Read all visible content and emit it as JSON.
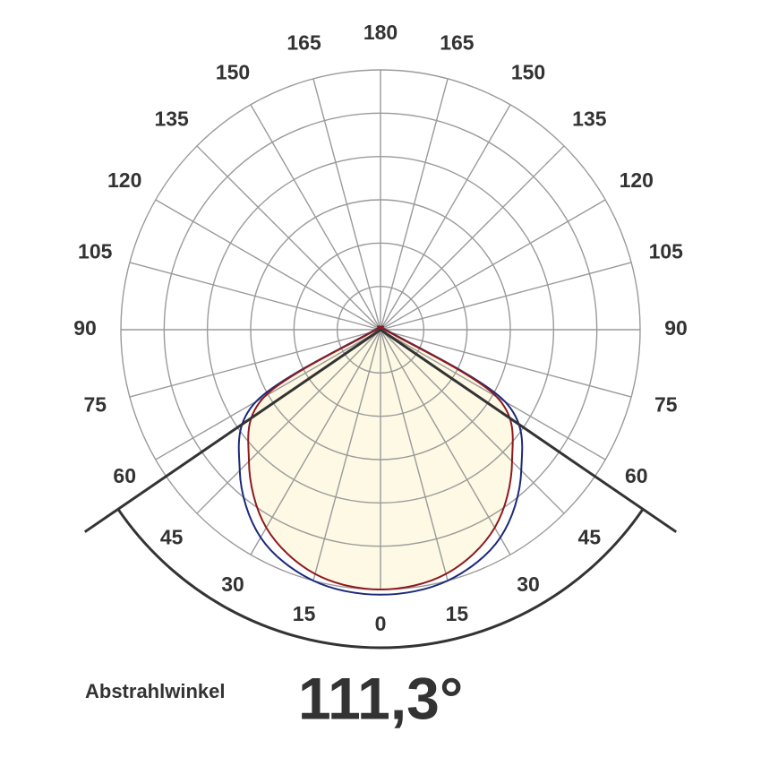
{
  "chart_data": {
    "type": "polar",
    "angles": [
      -90,
      -75,
      -60,
      -45,
      -30,
      -15,
      0,
      15,
      30,
      45,
      60,
      75,
      90
    ],
    "series": [
      {
        "color": "#1c2a7a",
        "values": [
          0,
          12,
          166,
          230,
          277,
          300,
          306,
          300,
          277,
          230,
          166,
          12,
          0
        ]
      },
      {
        "color": "#8e1a1f",
        "fill": "#fdf9e4",
        "values": [
          0,
          10,
          155,
          215,
          264,
          292,
          300,
          292,
          264,
          215,
          155,
          10,
          0
        ]
      }
    ],
    "rlim": [
      0,
      300
    ],
    "rticks": [
      50,
      100,
      150,
      200,
      250,
      300
    ],
    "thetaticks": [
      {
        "value": -165,
        "label": "165"
      },
      {
        "value": -150,
        "label": "150"
      },
      {
        "value": -135,
        "label": "135"
      },
      {
        "value": -120,
        "label": "120"
      },
      {
        "value": -105,
        "label": "105"
      },
      {
        "value": -90,
        "label": "90"
      },
      {
        "value": -75,
        "label": "75"
      },
      {
        "value": -60,
        "label": "60"
      },
      {
        "value": -45,
        "label": "45"
      },
      {
        "value": -30,
        "label": "30"
      },
      {
        "value": -15,
        "label": "15"
      },
      0,
      15,
      30,
      45,
      60,
      75,
      90,
      105,
      120,
      135,
      150,
      165,
      180
    ],
    "beam_angle": {
      "label": "Abstrahlwinkel",
      "value": 111.3,
      "value_label": "111,3°"
    }
  }
}
